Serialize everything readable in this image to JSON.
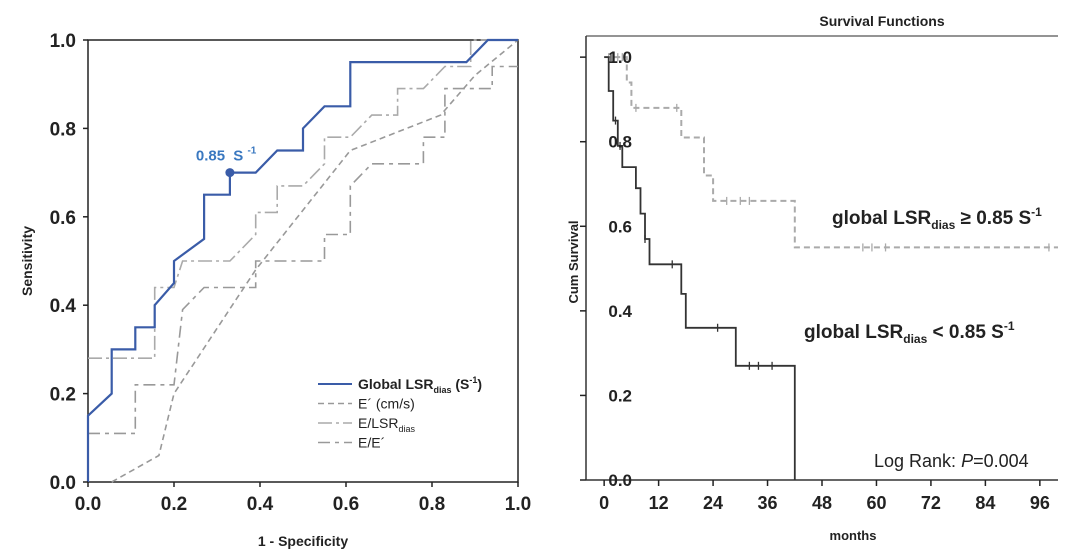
{
  "chart_data": [
    {
      "type": "line",
      "panel": "roc",
      "xlabel": "1 - Specificity",
      "ylabel": "Sensitivity",
      "xlim": [
        0,
        1
      ],
      "ylim": [
        0,
        1
      ],
      "xticks": [
        "0.0",
        "0.2",
        "0.4",
        "0.6",
        "0.8",
        "1.0"
      ],
      "yticks": [
        "0.0",
        "0.2",
        "0.4",
        "0.6",
        "0.8",
        "1.0"
      ],
      "grid": false,
      "legend_position": "bottom-right",
      "annotation": {
        "text": "0.85",
        "sup": "-1",
        "unit": "S",
        "x": 0.33,
        "y": 0.7
      },
      "series": [
        {
          "legend": "Global LSR",
          "sub": "dias",
          "suffix_pre": " (S",
          "suffix_sup": "-1",
          "suffix_post": ")",
          "color": "#3a5ca8",
          "style": "solid",
          "points": [
            [
              0,
              0
            ],
            [
              0,
              0.15
            ],
            [
              0.055,
              0.2
            ],
            [
              0.055,
              0.3
            ],
            [
              0.11,
              0.3
            ],
            [
              0.11,
              0.35
            ],
            [
              0.155,
              0.35
            ],
            [
              0.155,
              0.4
            ],
            [
              0.2,
              0.45
            ],
            [
              0.2,
              0.5
            ],
            [
              0.27,
              0.55
            ],
            [
              0.27,
              0.65
            ],
            [
              0.33,
              0.65
            ],
            [
              0.33,
              0.7
            ],
            [
              0.39,
              0.7
            ],
            [
              0.44,
              0.75
            ],
            [
              0.5,
              0.75
            ],
            [
              0.5,
              0.8
            ],
            [
              0.55,
              0.85
            ],
            [
              0.61,
              0.85
            ],
            [
              0.61,
              0.95
            ],
            [
              0.88,
              0.95
            ],
            [
              0.93,
              1.0
            ],
            [
              1.0,
              1.0
            ]
          ]
        },
        {
          "legend": "E´ (cm/s)",
          "color": "#999999",
          "style": "dashed",
          "points": [
            [
              0.055,
              0.0
            ],
            [
              0.165,
              0.06
            ],
            [
              0.2,
              0.2
            ],
            [
              0.39,
              0.48
            ],
            [
              0.61,
              0.75
            ],
            [
              0.82,
              0.83
            ],
            [
              0.9,
              0.92
            ],
            [
              1.0,
              1.0
            ]
          ]
        },
        {
          "legend": "E/LSR",
          "sub": "dias",
          "color": "#aaaaaa",
          "style": "dashdot",
          "points": [
            [
              0,
              0.28
            ],
            [
              0.155,
              0.28
            ],
            [
              0.155,
              0.44
            ],
            [
              0.2,
              0.44
            ],
            [
              0.22,
              0.5
            ],
            [
              0.33,
              0.5
            ],
            [
              0.39,
              0.56
            ],
            [
              0.39,
              0.61
            ],
            [
              0.44,
              0.61
            ],
            [
              0.44,
              0.67
            ],
            [
              0.5,
              0.67
            ],
            [
              0.55,
              0.72
            ],
            [
              0.55,
              0.78
            ],
            [
              0.61,
              0.78
            ],
            [
              0.66,
              0.83
            ],
            [
              0.72,
              0.83
            ],
            [
              0.72,
              0.89
            ],
            [
              0.78,
              0.89
            ],
            [
              0.83,
              0.94
            ],
            [
              0.89,
              0.94
            ],
            [
              0.89,
              1.0
            ],
            [
              1.0,
              1.0
            ]
          ]
        },
        {
          "legend": "E/E´",
          "color": "#999999",
          "style": "longdash",
          "points": [
            [
              0,
              0.11
            ],
            [
              0.11,
              0.11
            ],
            [
              0.11,
              0.22
            ],
            [
              0.2,
              0.22
            ],
            [
              0.22,
              0.39
            ],
            [
              0.27,
              0.44
            ],
            [
              0.39,
              0.44
            ],
            [
              0.39,
              0.5
            ],
            [
              0.55,
              0.5
            ],
            [
              0.55,
              0.56
            ],
            [
              0.61,
              0.56
            ],
            [
              0.61,
              0.67
            ],
            [
              0.66,
              0.72
            ],
            [
              0.78,
              0.72
            ],
            [
              0.78,
              0.78
            ],
            [
              0.83,
              0.78
            ],
            [
              0.83,
              0.89
            ],
            [
              0.94,
              0.89
            ],
            [
              0.94,
              0.94
            ],
            [
              1.0,
              0.94
            ]
          ]
        }
      ]
    },
    {
      "type": "line",
      "panel": "survival",
      "title": "Survival Functions",
      "xlabel": "months",
      "ylabel": "Cum Survival",
      "xlim": [
        -4,
        100
      ],
      "ylim": [
        0,
        1.05
      ],
      "xticks": [
        0,
        12,
        24,
        36,
        48,
        60,
        72,
        84,
        96
      ],
      "yticks": [
        "0.0",
        "0.2",
        "0.4",
        "0.6",
        "0.8",
        "1.0"
      ],
      "grid": false,
      "annotation": {
        "prefix": "Log Rank: ",
        "p_label": "P",
        "suffix": "=0.004"
      },
      "series": [
        {
          "name_pre": "global LSR",
          "sub": "dias",
          "name_post": " ≥ 0.85 S",
          "sup": "-1",
          "color": "#aaaaaa",
          "style": "dashed",
          "steps": [
            [
              0,
              1.0
            ],
            [
              5,
              0.94
            ],
            [
              6,
              0.88
            ],
            [
              13,
              0.88
            ],
            [
              17,
              0.81
            ],
            [
              22,
              0.72
            ],
            [
              24,
              0.66
            ],
            [
              42,
              0.55
            ],
            [
              100,
              0.55
            ]
          ],
          "censored": [
            [
              1,
              1.0
            ],
            [
              2,
              1.0
            ],
            [
              3,
              1.0
            ],
            [
              4,
              1.0
            ],
            [
              7,
              0.88
            ],
            [
              16,
              0.88
            ],
            [
              27,
              0.66
            ],
            [
              30,
              0.66
            ],
            [
              32,
              0.66
            ],
            [
              57,
              0.55
            ],
            [
              59,
              0.55
            ],
            [
              62,
              0.55
            ],
            [
              98,
              0.55
            ]
          ]
        },
        {
          "name_pre": "global LSR",
          "sub": "dias",
          "name_post": " < 0.85 S",
          "sup": "-1",
          "color": "#333333",
          "style": "solid",
          "steps": [
            [
              0,
              1.0
            ],
            [
              1,
              0.92
            ],
            [
              2,
              0.85
            ],
            [
              3,
              0.79
            ],
            [
              4,
              0.74
            ],
            [
              7,
              0.69
            ],
            [
              8,
              0.63
            ],
            [
              9,
              0.57
            ],
            [
              10,
              0.51
            ],
            [
              17,
              0.44
            ],
            [
              18,
              0.36
            ],
            [
              29,
              0.27
            ],
            [
              42,
              0.0
            ]
          ],
          "censored": [
            [
              1.5,
              1.0
            ],
            [
              2.5,
              0.85
            ],
            [
              3.5,
              0.79
            ],
            [
              9,
              0.57
            ],
            [
              15,
              0.51
            ],
            [
              25,
              0.36
            ],
            [
              32,
              0.27
            ],
            [
              34,
              0.27
            ],
            [
              37,
              0.27
            ]
          ]
        }
      ]
    }
  ]
}
